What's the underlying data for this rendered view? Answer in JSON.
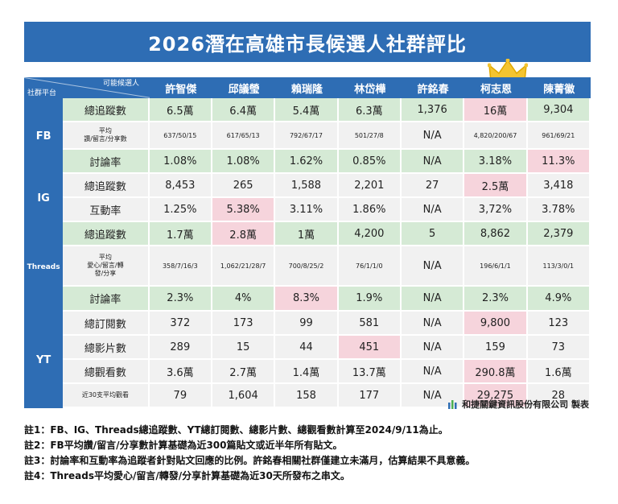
{
  "title": "2026潛在高雄市長候選人社群評比",
  "corner": {
    "top": "可能候選人",
    "bottom": "社群平台"
  },
  "candidates": [
    "許智傑",
    "邱議瑩",
    "賴瑞隆",
    "林岱樺",
    "許銘春",
    "柯志恩",
    "陳菁徽"
  ],
  "platforms": {
    "fb": "FB",
    "ig": "IG",
    "threads": "Threads",
    "yt": "YT"
  },
  "rows": [
    {
      "metric": "總追蹤數",
      "values": [
        "6.5萬",
        "6.4萬",
        "5.4萬",
        "6.3萬",
        "1,376",
        "16萬",
        "9,304"
      ]
    },
    {
      "metric": "平均\n讚/留言/分享數",
      "values": [
        "637/50/15",
        "617/65/13",
        "792/67/17",
        "501/27/8",
        "N/A",
        "4,820/200/67",
        "961/69/21"
      ]
    },
    {
      "metric": "討論率",
      "values": [
        "1.08%",
        "1.08%",
        "1.62%",
        "0.85%",
        "N/A",
        "3.18%",
        "11.3%"
      ]
    },
    {
      "metric": "總追蹤數",
      "values": [
        "8,453",
        "265",
        "1,588",
        "2,201",
        "27",
        "2.5萬",
        "3,418"
      ]
    },
    {
      "metric": "互動率",
      "values": [
        "1.25%",
        "5.38%",
        "3.11%",
        "1.86%",
        "N/A",
        "3,72%",
        "3.78%"
      ]
    },
    {
      "metric": "總追蹤數",
      "values": [
        "1.7萬",
        "2.8萬",
        "1萬",
        "4,200",
        "5",
        "8,862",
        "2,379"
      ]
    },
    {
      "metric": "平均\n愛心/留言/轉\n發/分享",
      "values": [
        "358/7/16/3",
        "1,062/21/28/7",
        "700/8/25/2",
        "76/1/1/0",
        "N/A",
        "196/6/1/1",
        "113/3/0/1"
      ]
    },
    {
      "metric": "討論率",
      "values": [
        "2.3%",
        "4%",
        "8.3%",
        "1.9%",
        "N/A",
        "2.3%",
        "4.9%"
      ]
    },
    {
      "metric": "總訂閱數",
      "values": [
        "372",
        "173",
        "99",
        "581",
        "N/A",
        "9,800",
        "123"
      ]
    },
    {
      "metric": "總影片數",
      "values": [
        "289",
        "15",
        "44",
        "451",
        "N/A",
        "159",
        "73"
      ]
    },
    {
      "metric": "總觀看數",
      "values": [
        "3.6萬",
        "2.7萬",
        "1.4萬",
        "13.7萬",
        "N/A",
        "290.8萬",
        "1.6萬"
      ]
    },
    {
      "metric": "近30支平均觀看",
      "values": [
        "79",
        "1,604",
        "158",
        "177",
        "N/A",
        "29,275",
        "28"
      ]
    }
  ],
  "colors": {
    "header_blue": "#2e6db4",
    "green_row": "#d5ead5",
    "gray_row": "#f1f1f1",
    "highlight_pink": "#f6d4dc",
    "crown_gold": "#f4c430"
  },
  "company": "和捷關鍵資訊股份有限公司 製表",
  "notes": [
    "註1：FB、IG、Threads總追蹤數、YT總訂閱數、總影片數、總觀看數計算至2024/9/11為止。",
    "註2：FB平均讚/留言/分享數計算基礎為近300篇貼文或近半年所有貼文。",
    "註3：討論率和互動率為追蹤者針對貼文回應的比例。許銘春相關社群僅建立未滿月，估算結果不具意義。",
    "註4：Threads平均愛心/留言/轉發/分享計算基礎為近30天所發布之串文。"
  ]
}
